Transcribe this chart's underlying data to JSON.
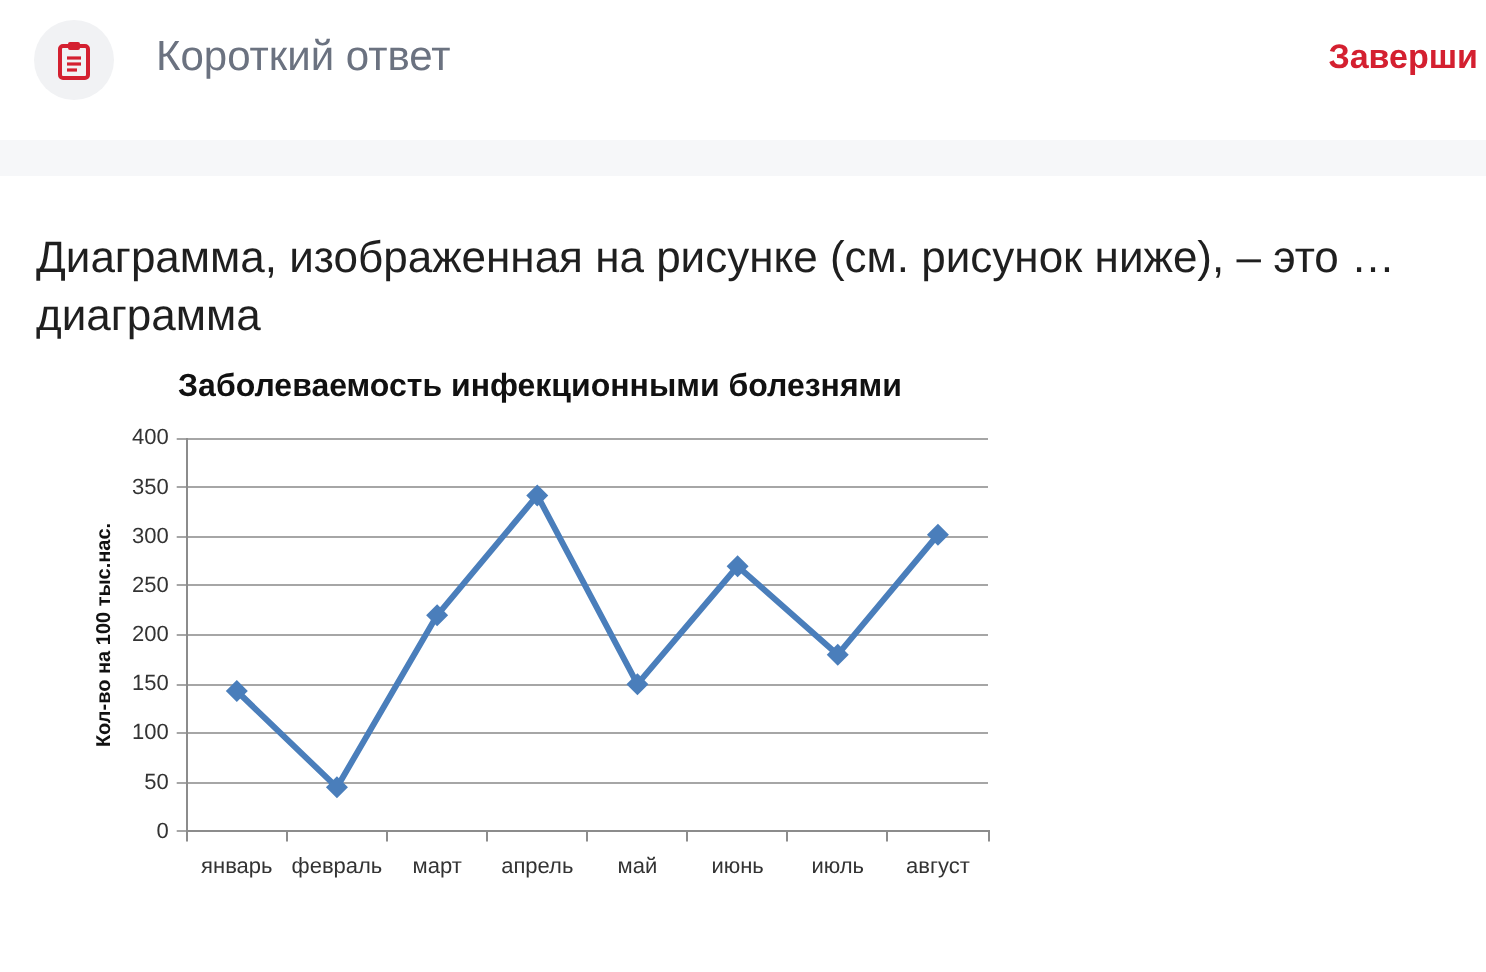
{
  "chart_data": {
    "type": "line",
    "title": "Заболеваемость инфекционными болезнями",
    "ylabel": "Кол-во на 100 тыс.нас.",
    "annotations": [
      "Короткий ответ",
      "Заверши",
      "Диаграмма, изображенная на рисунке (см. рисунок ниже), – это … диаграмма"
    ],
    "categories": [
      "январь",
      "февраль",
      "март",
      "апрель",
      "май",
      "июнь",
      "июль",
      "август"
    ],
    "values": [
      143,
      45,
      220,
      342,
      150,
      270,
      180,
      302
    ],
    "color": "#4a7ebb",
    "ylim": [
      0,
      400
    ],
    "yticks": [
      0,
      50,
      100,
      150,
      200,
      250,
      300,
      350,
      400
    ],
    "grid": "y",
    "legend": false,
    "marker": "diamond",
    "line_style": "solid"
  }
}
